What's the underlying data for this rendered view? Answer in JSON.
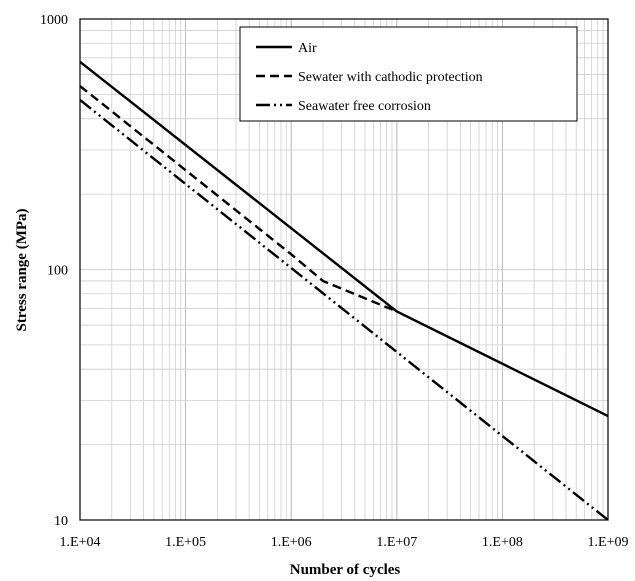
{
  "chart_data": {
    "type": "line",
    "xlabel": "Number of cycles",
    "ylabel": "Stress range (MPa)",
    "x_scale": "log",
    "y_scale": "log",
    "xlim": [
      10000,
      1000000000
    ],
    "ylim": [
      10,
      1000
    ],
    "x_ticks": [
      "1.E+04",
      "1.E+05",
      "1.E+06",
      "1.E+07",
      "1.E+08",
      "1.E+09"
    ],
    "y_ticks": [
      "10",
      "100",
      "1000"
    ],
    "grid": true,
    "legend_position": "top-right",
    "series": [
      {
        "name": "Air",
        "style": "solid",
        "x": [
          10000,
          10000000,
          1000000000
        ],
        "y": [
          675,
          68,
          26
        ]
      },
      {
        "name": "Sewater with cathodic protection",
        "style": "dashed",
        "x": [
          10000,
          1000000,
          2000000,
          10000000
        ],
        "y": [
          540,
          115,
          90,
          68
        ]
      },
      {
        "name": "Seawater free corrosion",
        "style": "dash-dot-dot",
        "x": [
          10000,
          1000000000
        ],
        "y": [
          475,
          10
        ]
      }
    ]
  }
}
